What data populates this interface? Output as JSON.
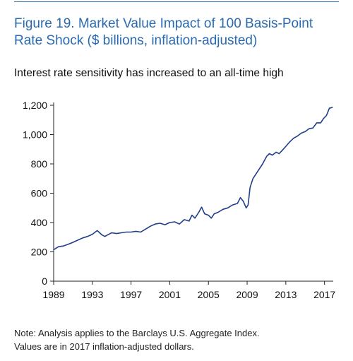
{
  "title_line1": "Figure 19. Market Value Impact of 100 Basis-Point",
  "title_line2": "Rate Shock ($ billions, inflation-adjusted)",
  "subtitle": "Interest rate sensitivity has increased to an all-time high",
  "note_line1": "Note: Analysis applies to the Barclays U.S. Aggregate Index.",
  "note_line2": "Values are in 2017 inflation-adjusted dollars.",
  "colors": {
    "title": "#2a6ab0",
    "line": "#1f3f8a",
    "axis": "#222222"
  },
  "chart_data": {
    "type": "line",
    "title": "Figure 19. Market Value Impact of 100 Basis-Point Rate Shock ($ billions, inflation-adjusted)",
    "xlabel": "",
    "ylabel": "",
    "xlim": [
      1989,
      2017.9
    ],
    "ylim": [
      0,
      1200
    ],
    "xticks": [
      1989,
      1993,
      1997,
      2001,
      2005,
      2009,
      2013,
      2017
    ],
    "yticks": [
      0,
      200,
      400,
      600,
      800,
      1000,
      1200
    ],
    "ytick_labels": [
      "0",
      "200",
      "400",
      "600",
      "800",
      "1,000",
      "1,200"
    ],
    "grid": false,
    "legend": "none",
    "series": [
      {
        "x": [
          1989.0,
          1989.5,
          1990.0,
          1990.5,
          1991.0,
          1991.5,
          1992.0,
          1992.5,
          1993.0,
          1993.5,
          1994.0,
          1994.3,
          1994.7,
          1995.0,
          1995.5,
          1996.0,
          1996.5,
          1997.0,
          1997.5,
          1998.0,
          1998.5,
          1999.0,
          1999.5,
          2000.0,
          2000.5,
          2001.0,
          2001.5,
          2002.0,
          2002.5,
          2003.0,
          2003.3,
          2003.6,
          2004.0,
          2004.3,
          2004.6,
          2005.0,
          2005.3,
          2005.6,
          2006.0,
          2006.5,
          2007.0,
          2007.5,
          2008.0,
          2008.3,
          2008.6,
          2008.9,
          2009.1,
          2009.3,
          2009.6,
          2010.0,
          2010.3,
          2010.6,
          2011.0,
          2011.3,
          2011.6,
          2012.0,
          2012.3,
          2012.6,
          2013.0,
          2013.4,
          2013.8,
          2014.2,
          2014.6,
          2015.0,
          2015.4,
          2015.8,
          2016.2,
          2016.6,
          2016.9,
          2017.2,
          2017.5,
          2017.8
        ],
        "values": [
          215,
          235,
          240,
          252,
          265,
          280,
          295,
          305,
          320,
          345,
          315,
          305,
          320,
          330,
          325,
          330,
          335,
          335,
          340,
          335,
          355,
          375,
          390,
          395,
          385,
          400,
          405,
          390,
          420,
          410,
          450,
          430,
          470,
          505,
          460,
          450,
          430,
          460,
          470,
          490,
          500,
          520,
          530,
          570,
          545,
          500,
          520,
          640,
          700,
          740,
          770,
          800,
          850,
          870,
          860,
          880,
          870,
          890,
          920,
          950,
          975,
          990,
          1010,
          1020,
          1040,
          1045,
          1080,
          1080,
          1110,
          1130,
          1180,
          1185
        ]
      }
    ]
  }
}
